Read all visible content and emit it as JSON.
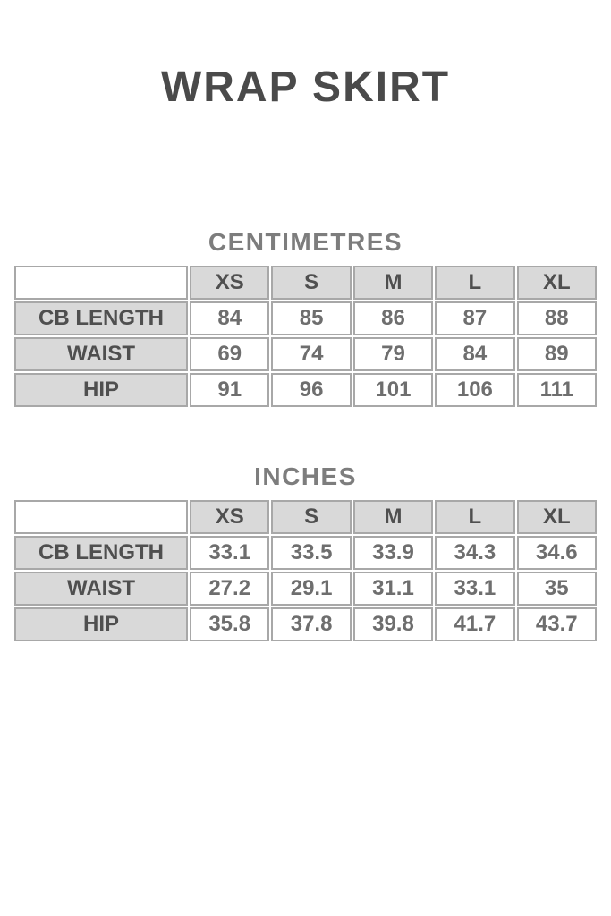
{
  "page": {
    "title": "WRAP SKIRT",
    "background": "#ffffff"
  },
  "colors": {
    "title_text": "#4a4a4a",
    "section_title_text": "#7d7d7d",
    "table_border": "#a8a8a8",
    "header_cell_background": "#d9d9d9",
    "label_text": "#4f4f4f",
    "value_text": "#6e6e6e"
  },
  "sections": [
    {
      "title": "CENTIMETRES",
      "table": {
        "size_columns": [
          "XS",
          "S",
          "M",
          "L",
          "XL"
        ],
        "rows": [
          {
            "label": "CB LENGTH",
            "values": [
              "84",
              "85",
              "86",
              "87",
              "88"
            ]
          },
          {
            "label": "WAIST",
            "values": [
              "69",
              "74",
              "79",
              "84",
              "89"
            ]
          },
          {
            "label": "HIP",
            "values": [
              "91",
              "96",
              "101",
              "106",
              "111"
            ]
          }
        ]
      }
    },
    {
      "title": "INCHES",
      "table": {
        "size_columns": [
          "XS",
          "S",
          "M",
          "L",
          "XL"
        ],
        "rows": [
          {
            "label": "CB LENGTH",
            "values": [
              "33.1",
              "33.5",
              "33.9",
              "34.3",
              "34.6"
            ]
          },
          {
            "label": "WAIST",
            "values": [
              "27.2",
              "29.1",
              "31.1",
              "33.1",
              "35"
            ]
          },
          {
            "label": "HIP",
            "values": [
              "35.8",
              "37.8",
              "39.8",
              "41.7",
              "43.7"
            ]
          }
        ]
      }
    }
  ]
}
